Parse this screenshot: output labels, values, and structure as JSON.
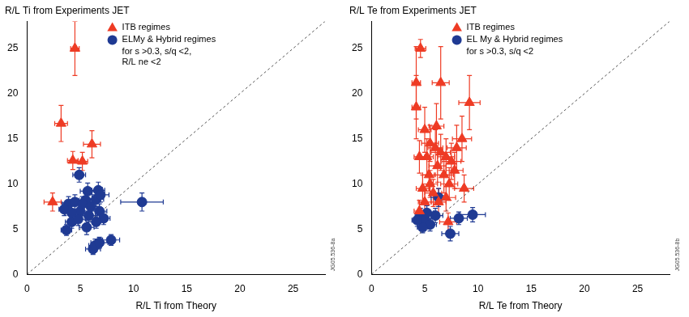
{
  "chart_data": [
    {
      "type": "scatter",
      "ylabel": "R/L Ti from Experiments JET",
      "xlabel": "R/L Ti from Theory",
      "xlim": [
        0,
        28
      ],
      "ylim": [
        0,
        28
      ],
      "xticks": [
        0,
        5,
        10,
        15,
        20,
        25
      ],
      "yticks": [
        0,
        5,
        10,
        15,
        20,
        25
      ],
      "grid": false,
      "legend": "upper left",
      "legend_note": [
        "for s >0.3, s/q <2,",
        "R/L ne <2"
      ],
      "annotations": [
        {
          "text": "JG05.536-8a"
        }
      ],
      "series": [
        {
          "name": "ITB regimes",
          "color": "#ee3b24",
          "marker": "triangle",
          "x": [
            4.5,
            3.2,
            4.3,
            5.2,
            6.1,
            2.4
          ],
          "values": [
            25,
            16.7,
            12.6,
            12.5,
            14.4,
            8
          ],
          "x_err": [
            0.4,
            0.6,
            0.5,
            0.5,
            0.8,
            0.8
          ],
          "y_err": [
            3,
            2,
            1,
            1,
            1.5,
            1
          ]
        },
        {
          "name": "ELMy & Hybrid regimes",
          "color": "#1f3a93",
          "marker": "circle",
          "x": [
            10.8,
            4.9,
            7.9,
            6.2,
            6.4,
            5.6,
            3.7,
            4.2,
            3.9,
            4.5,
            5,
            5.5,
            6.5,
            6.7,
            6.9,
            6.8,
            5.8,
            4.8,
            5.2,
            6,
            7.2,
            6.5,
            3.5,
            4.2,
            5.7,
            6.8
          ],
          "values": [
            8,
            11,
            3.8,
            2.8,
            3.2,
            5.2,
            4.9,
            5.8,
            7.8,
            8,
            7,
            8.2,
            8.3,
            9.3,
            8.8,
            7,
            6.5,
            6.1,
            7.8,
            7.5,
            6.2,
            5.8,
            7.2,
            6.8,
            9.2,
            3.5
          ],
          "x_err": [
            2,
            0.6,
            0.8,
            0.7,
            0.6,
            0.7,
            0.5,
            0.6,
            0.6,
            0.7,
            0.8,
            0.6,
            0.7,
            0.6,
            0.8,
            0.7,
            0.6,
            0.7,
            0.6,
            0.8,
            0.6,
            0.7,
            0.5,
            0.6,
            0.7,
            0.8
          ],
          "y_err": [
            1,
            0.8,
            0.6,
            0.6,
            0.7,
            0.8,
            0.6,
            0.7,
            0.8,
            0.8,
            0.9,
            0.8,
            0.8,
            0.9,
            0.8,
            0.8,
            0.7,
            0.7,
            0.8,
            0.9,
            0.7,
            0.7,
            0.7,
            0.8,
            0.9,
            0.6
          ]
        },
        {
          "type": "line",
          "line_style": "dashed",
          "color": "#555555",
          "x": [
            0,
            28
          ],
          "values": [
            0,
            28
          ]
        }
      ]
    },
    {
      "type": "scatter",
      "ylabel": "R/L Te from Experiments JET",
      "xlabel": "R/L Te from Theory",
      "xlim": [
        0,
        28
      ],
      "ylim": [
        0,
        28
      ],
      "xticks": [
        0,
        5,
        10,
        15,
        20,
        25
      ],
      "yticks": [
        0,
        5,
        10,
        15,
        20,
        25
      ],
      "grid": false,
      "legend": "upper left",
      "legend_note": [
        "for s >0.3, s/q <2"
      ],
      "annotations": [
        {
          "text": "JG05.536-8b"
        }
      ],
      "series": [
        {
          "name": "ITB regimes",
          "color": "#ee3b24",
          "marker": "triangle",
          "x": [
            4.6,
            4.2,
            4.2,
            6.5,
            9.2,
            8.5,
            5,
            5.5,
            6,
            6.5,
            7,
            7.5,
            5.2,
            4.5,
            6.2,
            6.8,
            7.3,
            5.5,
            4.8,
            5.8,
            6.3,
            7,
            5,
            4.5,
            7.2,
            8,
            7.8,
            6.1,
            5.4,
            8.7
          ],
          "values": [
            25,
            21.2,
            18.5,
            21.2,
            19,
            15,
            16,
            14.5,
            14,
            13.5,
            13,
            12.5,
            13,
            13,
            12,
            11,
            10,
            10,
            9.5,
            9,
            8,
            8.5,
            8,
            7,
            5.8,
            14,
            11.5,
            16.4,
            11,
            9.5
          ],
          "x_err": [
            0.5,
            0.4,
            0.4,
            0.8,
            1,
            0.9,
            0.6,
            0.8,
            0.7,
            0.9,
            0.8,
            0.9,
            0.6,
            0.5,
            0.8,
            0.9,
            0.8,
            0.7,
            0.6,
            0.8,
            0.7,
            0.9,
            0.6,
            0.5,
            0.8,
            0.9,
            0.8,
            0.7,
            0.6,
            0.9
          ],
          "y_err": [
            1,
            4,
            3.5,
            4,
            3,
            2.5,
            2.5,
            2,
            2,
            2,
            2,
            2,
            2,
            1.8,
            1.8,
            2,
            1.8,
            1.5,
            1.5,
            1.5,
            1.5,
            1.5,
            1.2,
            1.2,
            1,
            2.5,
            2,
            2.5,
            1.8,
            1.5
          ]
        },
        {
          "name": "EL My & Hybrid regimes",
          "color": "#1f3a93",
          "marker": "circle",
          "x": [
            6.3,
            9.5,
            7.4,
            4.6,
            5,
            5.5,
            4.8,
            6,
            8.2,
            5.2,
            4.3
          ],
          "values": [
            8.5,
            6.6,
            4.5,
            6.5,
            6,
            5.5,
            5.2,
            6.5,
            6.2,
            6.8,
            6
          ],
          "x_err": [
            0.7,
            1.2,
            0.8,
            0.5,
            0.6,
            0.6,
            0.5,
            0.7,
            0.8,
            0.6,
            0.5
          ],
          "y_err": [
            1,
            0.8,
            0.8,
            0.8,
            0.7,
            0.7,
            0.6,
            0.8,
            0.7,
            0.8,
            0.7
          ]
        },
        {
          "type": "line",
          "line_style": "dashed",
          "color": "#555555",
          "x": [
            0,
            28
          ],
          "values": [
            0,
            28
          ]
        }
      ]
    }
  ]
}
